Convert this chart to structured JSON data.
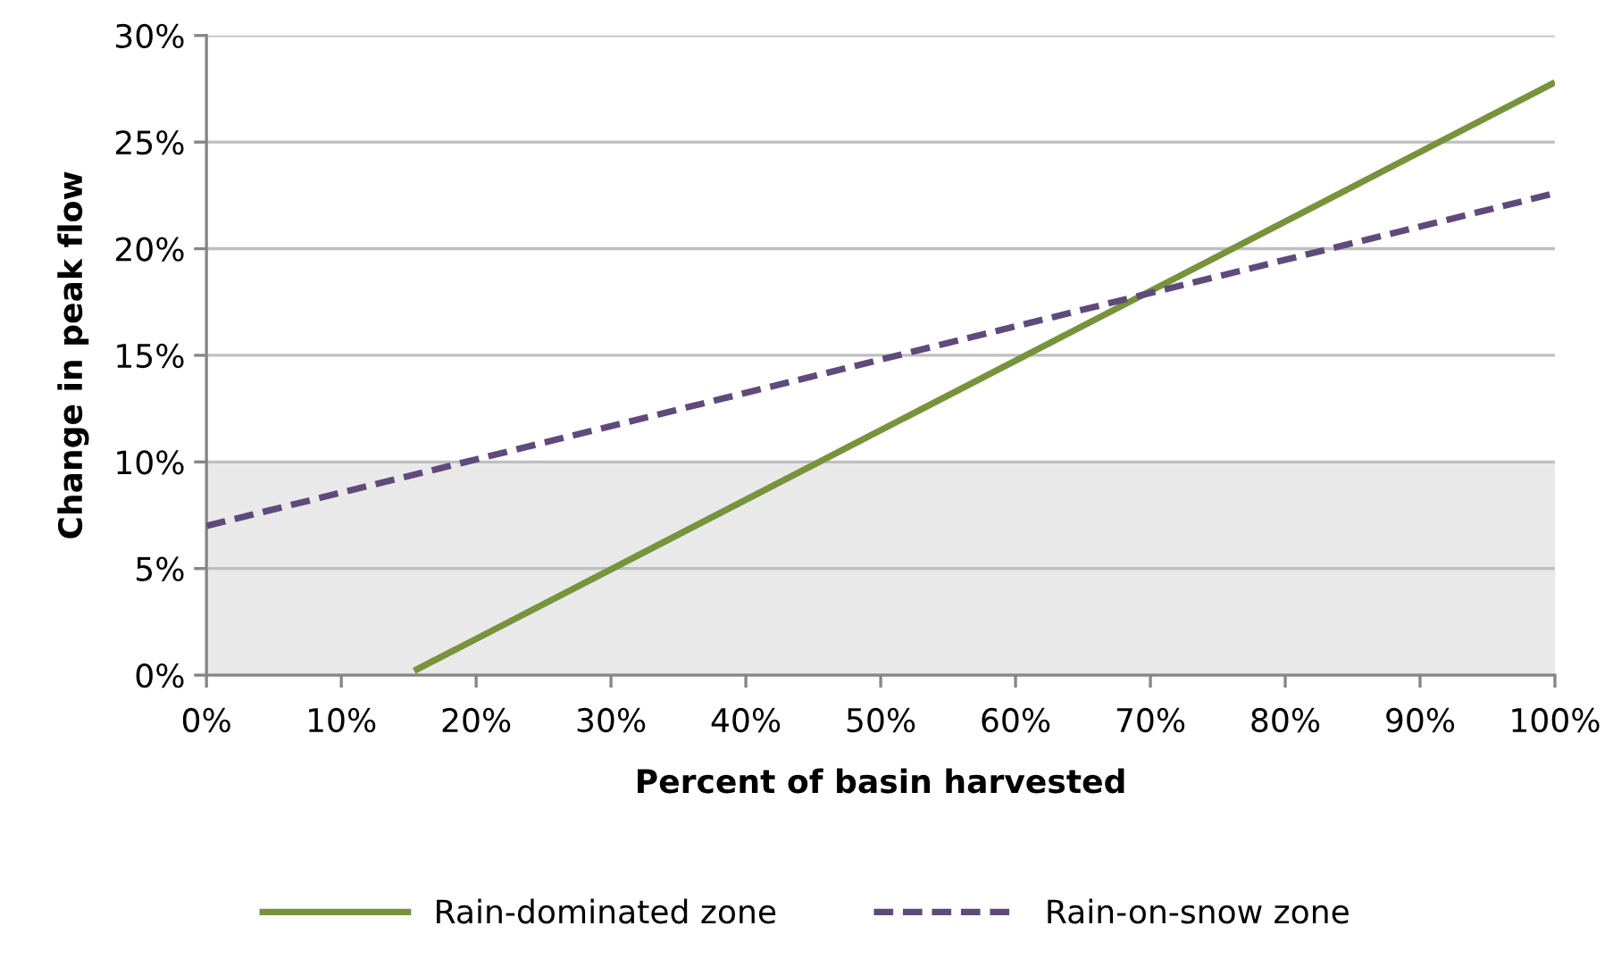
{
  "chart_data": {
    "type": "line",
    "xlabel": "Percent of basin harvested",
    "ylabel": "Change in peak flow",
    "xlim": [
      0,
      100
    ],
    "ylim": [
      0,
      30
    ],
    "xticks": [
      {
        "value": 0,
        "label": "0%"
      },
      {
        "value": 10,
        "label": "10%"
      },
      {
        "value": 20,
        "label": "20%"
      },
      {
        "value": 30,
        "label": "30%"
      },
      {
        "value": 40,
        "label": "40%"
      },
      {
        "value": 50,
        "label": "50%"
      },
      {
        "value": 60,
        "label": "60%"
      },
      {
        "value": 70,
        "label": "70%"
      },
      {
        "value": 80,
        "label": "80%"
      },
      {
        "value": 90,
        "label": "90%"
      },
      {
        "value": 100,
        "label": "100%"
      }
    ],
    "yticks": [
      {
        "value": 0,
        "label": "0%"
      },
      {
        "value": 5,
        "label": "5%"
      },
      {
        "value": 10,
        "label": "10%"
      },
      {
        "value": 15,
        "label": "15%"
      },
      {
        "value": 20,
        "label": "20%"
      },
      {
        "value": 25,
        "label": "25%"
      },
      {
        "value": 30,
        "label": "30%"
      }
    ],
    "series": [
      {
        "name": "Rain-dominated zone",
        "color": "#77933c",
        "x": [
          15.4,
          100
        ],
        "values": [
          0.2,
          27.8
        ],
        "line_style": "solid"
      },
      {
        "name": "Rain-on-snow zone",
        "color": "#604a7b",
        "x": [
          0,
          100
        ],
        "values": [
          7.0,
          22.6
        ],
        "line_style": "dashed"
      }
    ],
    "bands": [
      {
        "axis": "y",
        "from": 0,
        "to": 10,
        "color": "#e9e9e9"
      }
    ],
    "grid": "y",
    "legend": "bottom",
    "marker": "none"
  }
}
